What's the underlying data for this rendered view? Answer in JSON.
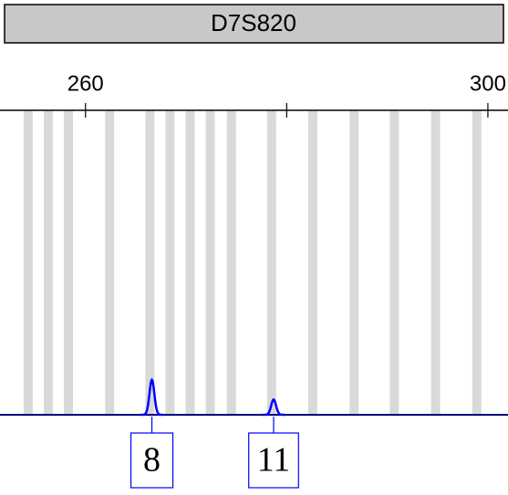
{
  "chart_data": {
    "type": "electropherogram",
    "title": "D7S820",
    "xlim": [
      251.5,
      302
    ],
    "xticks": [
      260,
      300
    ],
    "xminorticks": [
      280
    ],
    "ylim": [
      0,
      340
    ],
    "bins": [
      254.3,
      256.3,
      258.3,
      262.4,
      266.4,
      268.4,
      270.4,
      272.4,
      274.5,
      278.5,
      282.6,
      286.7,
      290.7,
      294.8,
      298.9
    ],
    "bin_width": 0.9,
    "bin_color": "#d9d9d9",
    "peaks": {
      "x": [
        266.6,
        278.7
      ],
      "values": [
        39,
        17
      ],
      "labels": [
        "8",
        "11"
      ],
      "color": "#0000ff"
    }
  }
}
